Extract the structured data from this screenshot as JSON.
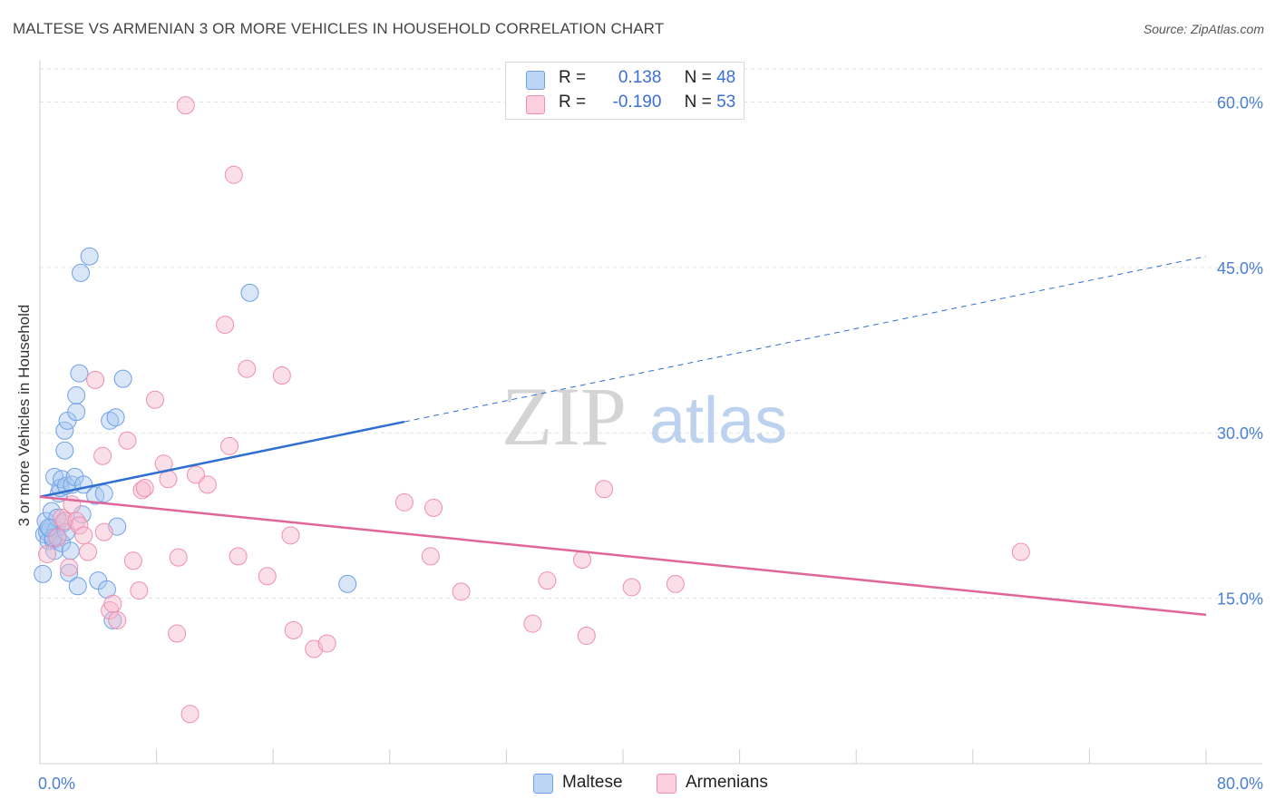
{
  "title": "MALTESE VS ARMENIAN 3 OR MORE VEHICLES IN HOUSEHOLD CORRELATION CHART",
  "source": "Source: ZipAtlas.com",
  "watermark": {
    "zip": "ZIP",
    "atlas": "atlas"
  },
  "legend": {
    "rows": [
      {
        "r_label": "R =",
        "r_value": "0.138",
        "n_label": "N =",
        "n_value": "48",
        "color": "#a9c8f0"
      },
      {
        "r_label": "R =",
        "r_value": "-0.190",
        "n_label": "N =",
        "n_value": "53",
        "color": "#f7b9cc"
      }
    ]
  },
  "bottom_legend": [
    {
      "label": "Maltese",
      "color": "#a9c8f0"
    },
    {
      "label": "Armenians",
      "color": "#f7b9cc"
    }
  ],
  "chart_data": {
    "type": "scatter",
    "title": "MALTESE VS ARMENIAN 3 OR MORE VEHICLES IN HOUSEHOLD CORRELATION CHART",
    "xlabel": "",
    "ylabel": "3 or more Vehicles in Household",
    "xlim": [
      0,
      80
    ],
    "ylim": [
      0,
      63
    ],
    "x_tick_labels": [
      "0.0%",
      "80.0%"
    ],
    "y_tick_labels": [
      "15.0%",
      "30.0%",
      "45.0%",
      "60.0%"
    ],
    "y_ticks": [
      15,
      30,
      45,
      60
    ],
    "grid": true,
    "legend_position": "top-center",
    "series": [
      {
        "name": "Maltese",
        "color": "#6fa0e6",
        "fill": "#a9c8f0",
        "trend": {
          "x0": 0,
          "y0": 24.2,
          "x1": 25,
          "y1": 31.0,
          "dashed_to_x": 80,
          "dashed_to_y": 46.0,
          "color": "#2e6fd0"
        },
        "points": [
          [
            0.2,
            17.2
          ],
          [
            0.3,
            20.8
          ],
          [
            0.4,
            22.0
          ],
          [
            0.5,
            21.0
          ],
          [
            0.6,
            20.2
          ],
          [
            0.7,
            21.3
          ],
          [
            0.8,
            22.9
          ],
          [
            0.9,
            20.3
          ],
          [
            1.0,
            19.3
          ],
          [
            1.0,
            26.0
          ],
          [
            1.1,
            21.2
          ],
          [
            1.2,
            20.6
          ],
          [
            1.3,
            24.5
          ],
          [
            1.4,
            25.0
          ],
          [
            1.5,
            20.0
          ],
          [
            1.5,
            25.8
          ],
          [
            1.6,
            21.8
          ],
          [
            1.7,
            30.2
          ],
          [
            1.7,
            28.4
          ],
          [
            1.8,
            25.2
          ],
          [
            1.9,
            31.1
          ],
          [
            2.0,
            17.3
          ],
          [
            2.1,
            19.3
          ],
          [
            2.2,
            25.3
          ],
          [
            2.4,
            26.0
          ],
          [
            2.5,
            31.9
          ],
          [
            2.5,
            33.4
          ],
          [
            2.6,
            16.1
          ],
          [
            2.7,
            35.4
          ],
          [
            2.8,
            44.5
          ],
          [
            2.9,
            22.6
          ],
          [
            3.0,
            25.3
          ],
          [
            3.4,
            46.0
          ],
          [
            3.8,
            24.3
          ],
          [
            4.0,
            16.6
          ],
          [
            4.4,
            24.5
          ],
          [
            4.6,
            15.8
          ],
          [
            4.8,
            31.1
          ],
          [
            5.0,
            13.0
          ],
          [
            5.2,
            31.4
          ],
          [
            5.3,
            21.5
          ],
          [
            5.7,
            34.9
          ],
          [
            14.4,
            42.7
          ],
          [
            21.1,
            16.3
          ],
          [
            1.2,
            22.3
          ],
          [
            0.9,
            20.5
          ],
          [
            1.8,
            21.0
          ],
          [
            0.6,
            21.4
          ]
        ]
      },
      {
        "name": "Armenians",
        "color": "#ee8fb0",
        "fill": "#f7b9cc",
        "trend": {
          "x0": 0,
          "y0": 24.2,
          "x1": 80,
          "y1": 13.5,
          "color": "#e0669a"
        },
        "points": [
          [
            0.5,
            19.0
          ],
          [
            1.2,
            20.5
          ],
          [
            1.5,
            22.3
          ],
          [
            1.7,
            22.0
          ],
          [
            2.0,
            17.8
          ],
          [
            2.2,
            23.5
          ],
          [
            2.5,
            22.0
          ],
          [
            2.7,
            21.6
          ],
          [
            3.0,
            20.7
          ],
          [
            3.3,
            19.2
          ],
          [
            3.8,
            34.8
          ],
          [
            4.3,
            27.9
          ],
          [
            4.4,
            21.0
          ],
          [
            4.8,
            13.9
          ],
          [
            5.0,
            14.5
          ],
          [
            5.3,
            13.0
          ],
          [
            6.0,
            29.3
          ],
          [
            6.4,
            18.4
          ],
          [
            6.8,
            15.7
          ],
          [
            7.0,
            24.8
          ],
          [
            7.2,
            25.0
          ],
          [
            7.9,
            33.0
          ],
          [
            8.5,
            27.2
          ],
          [
            8.8,
            25.8
          ],
          [
            9.4,
            11.8
          ],
          [
            9.5,
            18.7
          ],
          [
            10.0,
            59.7
          ],
          [
            10.3,
            4.5
          ],
          [
            10.7,
            26.2
          ],
          [
            11.5,
            25.3
          ],
          [
            12.7,
            39.8
          ],
          [
            13.0,
            28.8
          ],
          [
            13.3,
            53.4
          ],
          [
            13.6,
            18.8
          ],
          [
            14.2,
            35.8
          ],
          [
            15.6,
            17.0
          ],
          [
            16.6,
            35.2
          ],
          [
            17.2,
            20.7
          ],
          [
            17.4,
            12.1
          ],
          [
            18.8,
            10.4
          ],
          [
            19.7,
            10.9
          ],
          [
            25.0,
            23.7
          ],
          [
            26.8,
            18.8
          ],
          [
            27.0,
            23.2
          ],
          [
            28.9,
            15.6
          ],
          [
            33.8,
            12.7
          ],
          [
            34.8,
            16.6
          ],
          [
            37.2,
            18.5
          ],
          [
            37.5,
            11.6
          ],
          [
            38.7,
            24.9
          ],
          [
            40.6,
            16.0
          ],
          [
            43.6,
            16.3
          ],
          [
            67.3,
            19.2
          ]
        ]
      }
    ]
  }
}
